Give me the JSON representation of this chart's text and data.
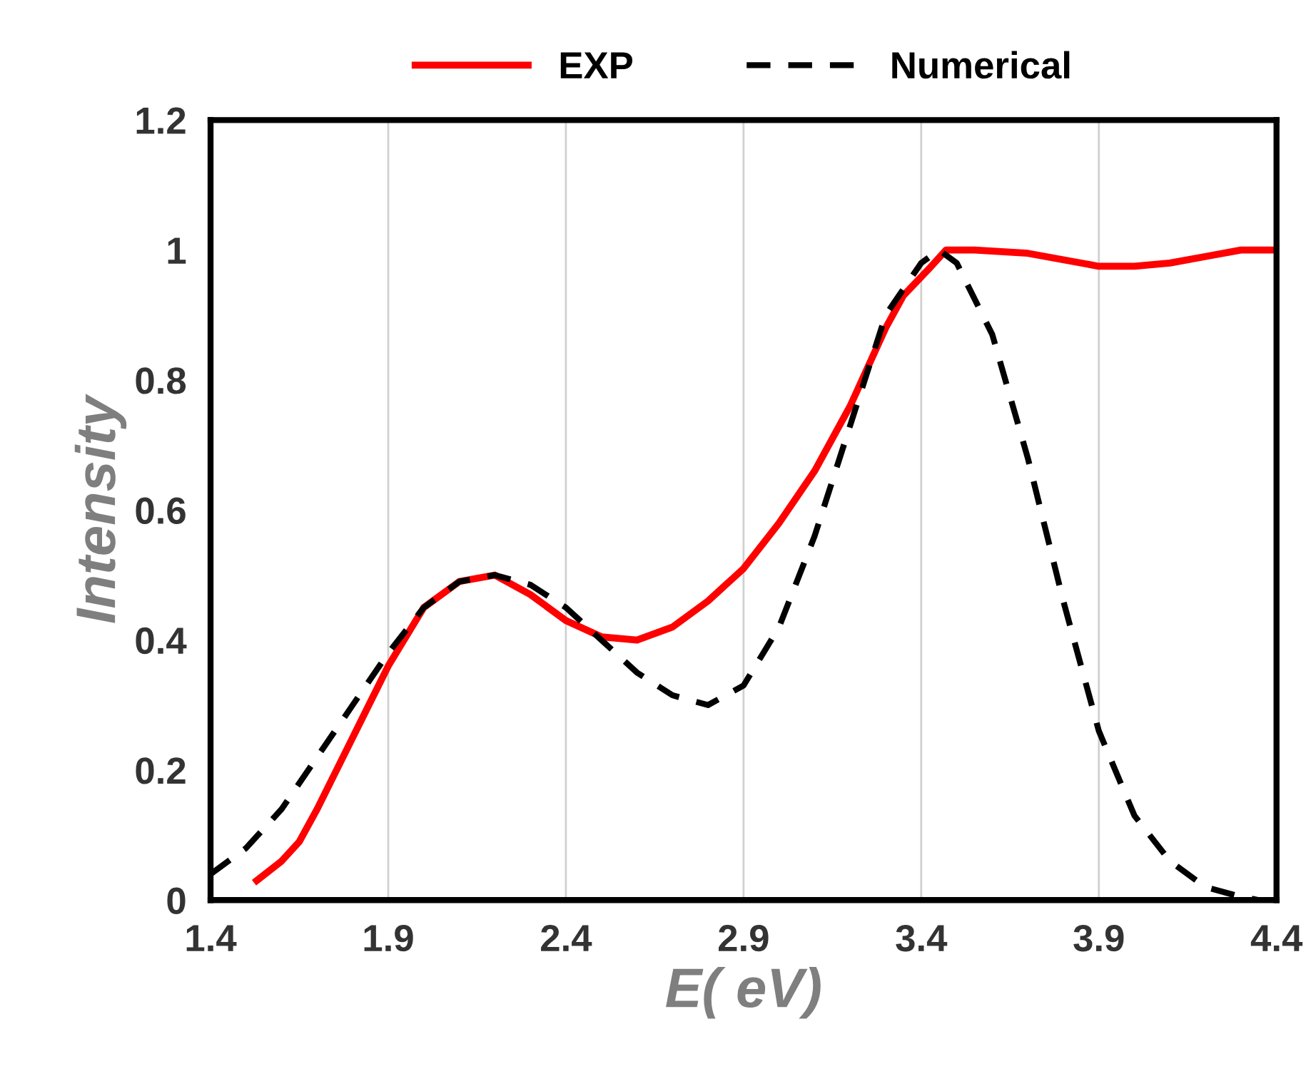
{
  "chart_data": {
    "type": "line",
    "xlabel": "E( eV)",
    "ylabel": "Intensity",
    "xlim": [
      1.4,
      4.4
    ],
    "xticks": [
      1.4,
      1.9,
      2.4,
      2.9,
      3.4,
      3.9,
      4.4
    ],
    "ylim": [
      0,
      1.2
    ],
    "yticks": [
      0,
      0.2,
      0.4,
      0.6,
      0.8,
      1,
      1.2
    ],
    "grid": "x",
    "legend": "top",
    "series": [
      {
        "name": "EXP",
        "color": "#ff0000",
        "line_style": "solid",
        "x": [
          1.53,
          1.6,
          1.65,
          1.7,
          1.8,
          1.9,
          2.0,
          2.1,
          2.2,
          2.3,
          2.4,
          2.5,
          2.6,
          2.7,
          2.8,
          2.9,
          3.0,
          3.1,
          3.2,
          3.3,
          3.35,
          3.42,
          3.47,
          3.55,
          3.7,
          3.9,
          4.0,
          4.1,
          4.2,
          4.3,
          4.4
        ],
        "values": [
          0.03,
          0.06,
          0.09,
          0.14,
          0.25,
          0.36,
          0.45,
          0.49,
          0.5,
          0.47,
          0.43,
          0.405,
          0.4,
          0.42,
          0.46,
          0.51,
          0.58,
          0.66,
          0.76,
          0.88,
          0.93,
          0.97,
          1.0,
          1.0,
          0.995,
          0.975,
          0.975,
          0.98,
          0.99,
          1.0,
          1.0
        ]
      },
      {
        "name": "Numerical",
        "color": "#000000",
        "line_style": "dashed",
        "x": [
          1.4,
          1.5,
          1.6,
          1.7,
          1.8,
          1.9,
          2.0,
          2.1,
          2.2,
          2.3,
          2.4,
          2.5,
          2.6,
          2.7,
          2.8,
          2.9,
          3.0,
          3.1,
          3.2,
          3.3,
          3.4,
          3.45,
          3.5,
          3.6,
          3.7,
          3.8,
          3.9,
          4.0,
          4.1,
          4.2,
          4.3,
          4.35
        ],
        "values": [
          0.04,
          0.08,
          0.14,
          0.22,
          0.3,
          0.38,
          0.45,
          0.49,
          0.5,
          0.485,
          0.45,
          0.4,
          0.35,
          0.315,
          0.3,
          0.33,
          0.42,
          0.56,
          0.73,
          0.9,
          0.98,
          1.0,
          0.98,
          0.87,
          0.68,
          0.46,
          0.26,
          0.13,
          0.06,
          0.02,
          0.005,
          0
        ]
      }
    ]
  }
}
